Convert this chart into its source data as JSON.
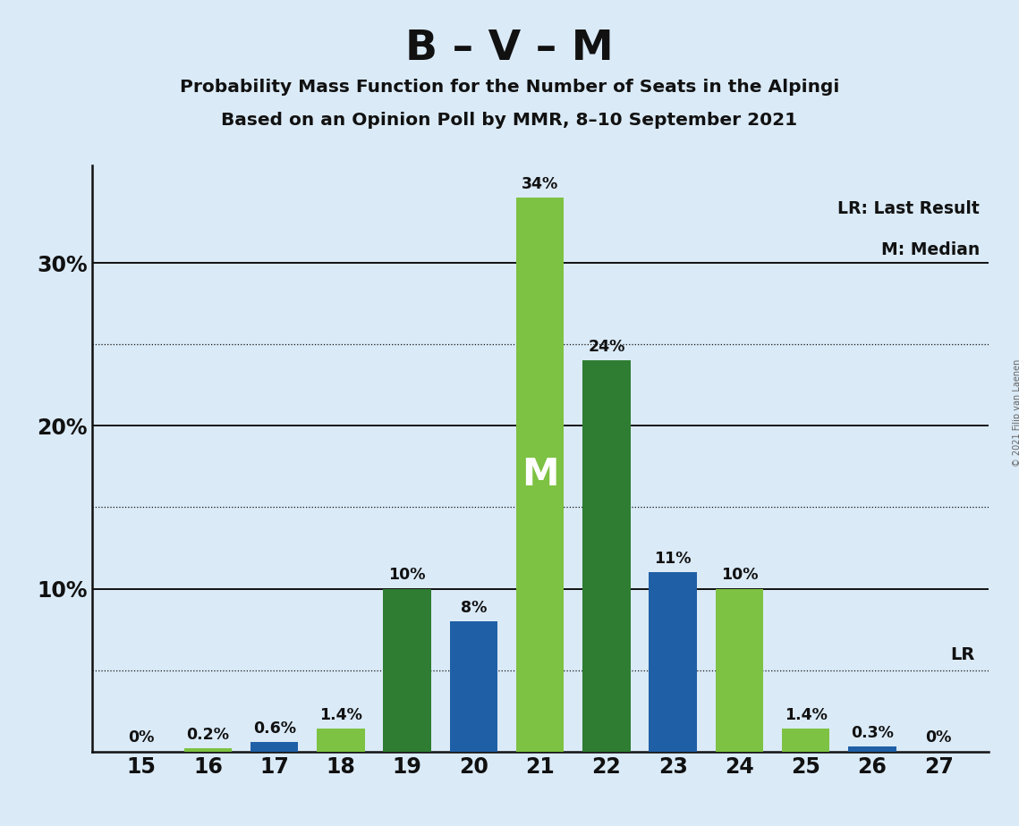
{
  "title": "B – V – M",
  "subtitle1": "Probability Mass Function for the Number of Seats in the Alpingi",
  "subtitle2": "Based on an Opinion Poll by MMR, 8–10 September 2021",
  "copyright": "© 2021 Filip van Laenen",
  "seats": [
    15,
    16,
    17,
    18,
    19,
    20,
    21,
    22,
    23,
    24,
    25,
    26,
    27
  ],
  "values": [
    0.0,
    0.2,
    0.6,
    1.4,
    10.0,
    8.0,
    34.0,
    24.0,
    11.0,
    10.0,
    1.4,
    0.3,
    0.0
  ],
  "bar_colors": [
    "#7dc242",
    "#7dc242",
    "#1f5fa6",
    "#7dc242",
    "#2e7d32",
    "#1f5fa6",
    "#7dc242",
    "#2e7d32",
    "#1f5fa6",
    "#7dc242",
    "#7dc242",
    "#1f5fa6",
    "#7dc242"
  ],
  "background_color": "#daeaf7",
  "median_seat": 21,
  "lr_value": 5.0,
  "ylim": [
    0,
    36
  ],
  "solid_gridlines": [
    10,
    20,
    30
  ],
  "dotted_gridlines": [
    5,
    15,
    25
  ]
}
